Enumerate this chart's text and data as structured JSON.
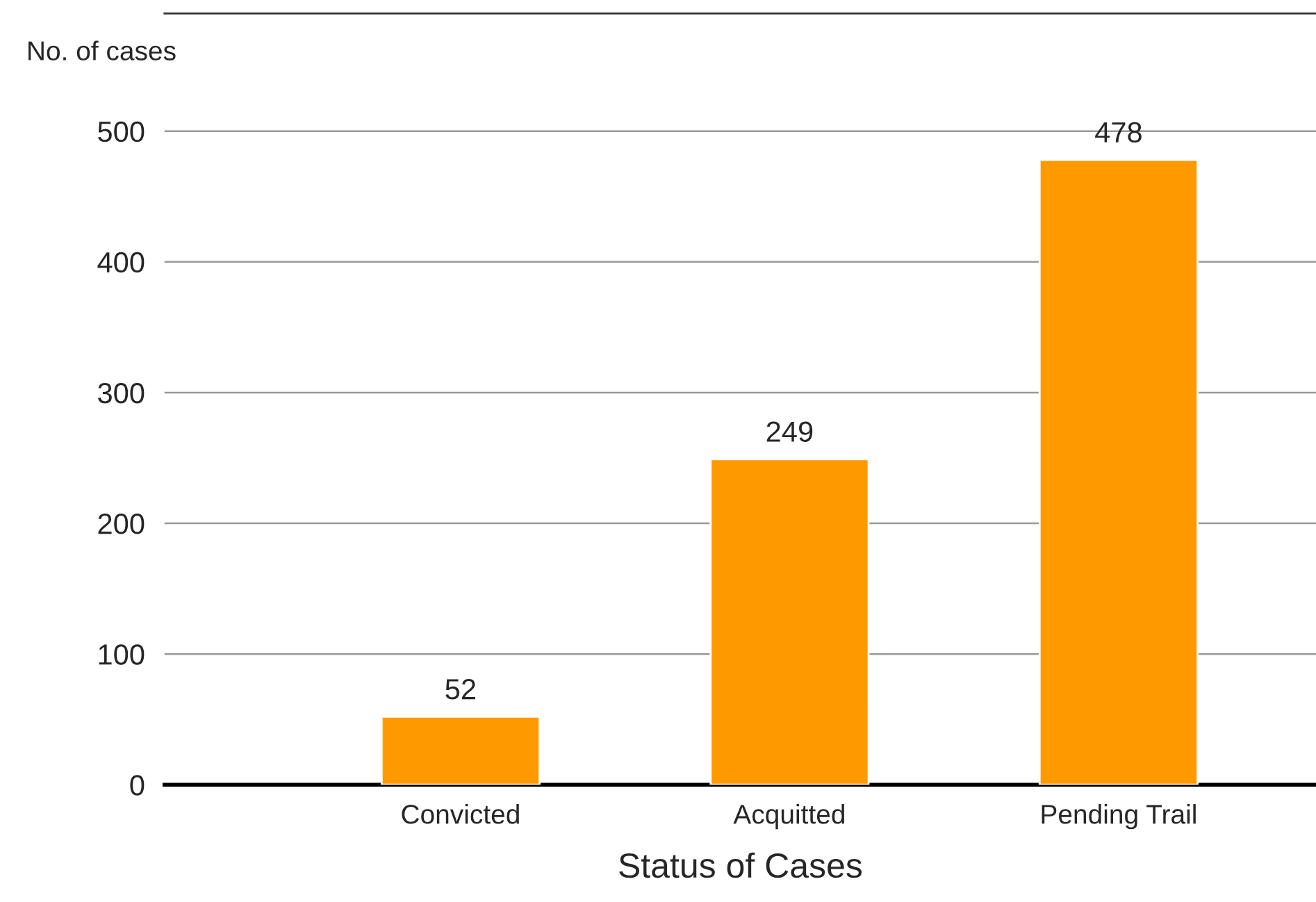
{
  "chart_data": {
    "type": "bar",
    "ylabel": "No. of cases",
    "xlabel": "Status of Cases",
    "categories": [
      "Convicted",
      "Acquitted",
      "Pending Trail"
    ],
    "values": [
      52,
      249,
      478
    ],
    "color": "#ff9900",
    "ylim": [
      0,
      590
    ],
    "yticks": [
      0,
      100,
      200,
      300,
      400,
      500
    ],
    "grid": "y",
    "data_labels": true
  }
}
